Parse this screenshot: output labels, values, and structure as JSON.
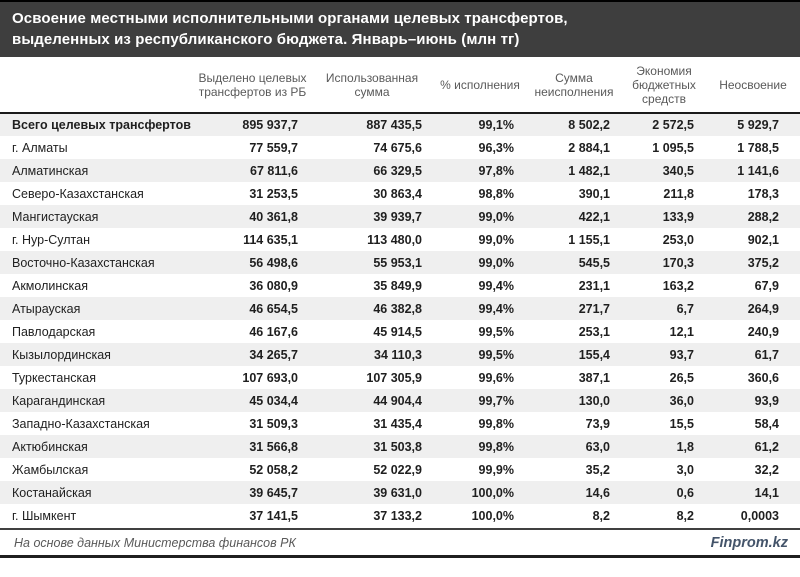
{
  "title": {
    "line1": "Освоение местными исполнительными органами целевых трансфертов,",
    "line2": "выделенных из республиканского бюджета. Январь–июнь (млн тг)"
  },
  "chart_data": {
    "type": "table",
    "title": "Освоение местными исполнительными органами целевых трансфертов, выделенных из республиканского бюджета. Январь–июнь (млн тг)",
    "columns": [
      "",
      "Выделено целевых трансфертов из РБ",
      "Использованная сумма",
      "% исполнения",
      "Сумма неисполнения",
      "Экономия бюджетных средств",
      "Неосвоение"
    ],
    "rows": [
      [
        "Всего целевых трансфертов",
        "895 937,7",
        "887 435,5",
        "99,1%",
        "8 502,2",
        "2 572,5",
        "5 929,7"
      ],
      [
        "г. Алматы",
        "77 559,7",
        "74 675,6",
        "96,3%",
        "2 884,1",
        "1 095,5",
        "1 788,5"
      ],
      [
        "Алматинская",
        "67 811,6",
        "66 329,5",
        "97,8%",
        "1 482,1",
        "340,5",
        "1 141,6"
      ],
      [
        "Северо-Казахстанская",
        "31 253,5",
        "30 863,4",
        "98,8%",
        "390,1",
        "211,8",
        "178,3"
      ],
      [
        "Мангистауская",
        "40 361,8",
        "39 939,7",
        "99,0%",
        "422,1",
        "133,9",
        "288,2"
      ],
      [
        "г. Нур-Султан",
        "114 635,1",
        "113 480,0",
        "99,0%",
        "1 155,1",
        "253,0",
        "902,1"
      ],
      [
        "Восточно-Казахстанская",
        "56 498,6",
        "55 953,1",
        "99,0%",
        "545,5",
        "170,3",
        "375,2"
      ],
      [
        "Акмолинская",
        "36 080,9",
        "35 849,9",
        "99,4%",
        "231,1",
        "163,2",
        "67,9"
      ],
      [
        "Атырауская",
        "46 654,5",
        "46 382,8",
        "99,4%",
        "271,7",
        "6,7",
        "264,9"
      ],
      [
        "Павлодарская",
        "46 167,6",
        "45 914,5",
        "99,5%",
        "253,1",
        "12,1",
        "240,9"
      ],
      [
        "Кызылординская",
        "34 265,7",
        "34 110,3",
        "99,5%",
        "155,4",
        "93,7",
        "61,7"
      ],
      [
        "Туркестанская",
        "107 693,0",
        "107 305,9",
        "99,6%",
        "387,1",
        "26,5",
        "360,6"
      ],
      [
        "Карагандинская",
        "45 034,4",
        "44 904,4",
        "99,7%",
        "130,0",
        "36,0",
        "93,9"
      ],
      [
        "Западно-Казахстанская",
        "31 509,3",
        "31 435,4",
        "99,8%",
        "73,9",
        "15,5",
        "58,4"
      ],
      [
        "Актюбинская",
        "31 566,8",
        "31 503,8",
        "99,8%",
        "63,0",
        "1,8",
        "61,2"
      ],
      [
        "Жамбылская",
        "52 058,2",
        "52 022,9",
        "99,9%",
        "35,2",
        "3,0",
        "32,2"
      ],
      [
        "Костанайская",
        "39 645,7",
        "39 631,0",
        "100,0%",
        "14,6",
        "0,6",
        "14,1"
      ],
      [
        "г. Шымкент",
        "37 141,5",
        "37 133,2",
        "100,0%",
        "8,2",
        "8,2",
        "0,0003"
      ]
    ],
    "layout": {
      "total_row_index": 0,
      "zebra_striping": true,
      "first_stripe": "gray"
    }
  },
  "footer": {
    "source": "На основе данных Министерства финансов РК",
    "brand": "Finprom.kz"
  },
  "colors": {
    "title_bar_bg": "#3E3E3E",
    "title_text": "#FFFFFF",
    "row_alt_bg": "#EFEFEF",
    "header_text": "#595959",
    "data_text": "#1F1F1F",
    "brand_text": "#44546A",
    "rule": "#1A1A1A"
  }
}
